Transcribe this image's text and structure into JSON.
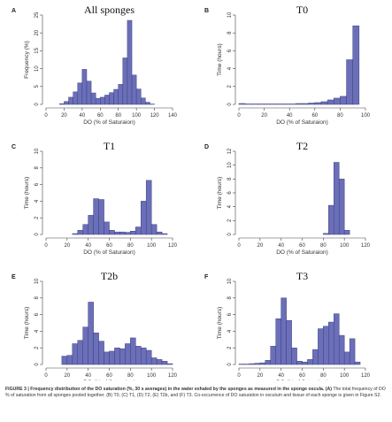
{
  "colors": {
    "bar_fill": "#6b6fb8",
    "bar_stroke": "#3c3f82",
    "axis": "#444444"
  },
  "caption": {
    "head": "FIGURE 3 | Frequency distribution of the DO saturation (%, 30 s averages) in the water exhaled by the sponges as measured in the sponge oscula. (A)",
    "body": "The total frequency of DO % of saturation from all sponges pooled together. (B) T0, (C) T1, (D) T2, (E) T2b, and (F) T3. Co-occurrence of DO saturation in osculum and tissue of each sponge is given in Figure S2."
  },
  "chart_data": [
    {
      "type": "bar",
      "letter": "A",
      "title": "All sponges",
      "xlabel": "DO (% of Saturaion)",
      "ylabel": "Frequency (%)",
      "xlim": [
        0,
        140
      ],
      "ylim": [
        0,
        25
      ],
      "xticks": [
        0,
        20,
        40,
        60,
        80,
        100,
        120,
        140
      ],
      "yticks": [
        0,
        5,
        10,
        15,
        20,
        25
      ],
      "bin_width": 5,
      "bin_starts": [
        15,
        20,
        25,
        30,
        35,
        40,
        45,
        50,
        55,
        60,
        65,
        70,
        75,
        80,
        85,
        90,
        95,
        100,
        105,
        110,
        115
      ],
      "values": [
        0.2,
        0.8,
        2.0,
        3.5,
        6.0,
        9.8,
        6.5,
        3.2,
        1.7,
        2.0,
        2.6,
        3.3,
        4.2,
        5.6,
        13.0,
        23.5,
        8.2,
        4.3,
        1.8,
        0.6,
        0.1
      ]
    },
    {
      "type": "bar",
      "letter": "B",
      "title": "T0",
      "xlabel": "DO (% of Saturaion)",
      "ylabel": "Time (hours)",
      "xlim": [
        0,
        100
      ],
      "ylim": [
        0,
        10
      ],
      "xticks": [
        0,
        20,
        40,
        60,
        80,
        100
      ],
      "yticks": [
        0,
        2,
        4,
        6,
        8,
        10
      ],
      "bin_width": 5,
      "bin_starts": [
        0,
        5,
        10,
        15,
        20,
        25,
        30,
        35,
        40,
        45,
        50,
        55,
        60,
        65,
        70,
        75,
        80,
        85,
        90
      ],
      "values": [
        0.1,
        0.05,
        0.05,
        0.05,
        0.05,
        0.05,
        0.05,
        0.05,
        0.05,
        0.1,
        0.1,
        0.15,
        0.2,
        0.3,
        0.5,
        0.7,
        0.9,
        5.0,
        8.8
      ]
    },
    {
      "type": "bar",
      "letter": "C",
      "title": "T1",
      "xlabel": "DO (% of Saturaion)",
      "ylabel": "Time (hours)",
      "xlim": [
        0,
        120
      ],
      "ylim": [
        0,
        10
      ],
      "xticks": [
        0,
        20,
        40,
        60,
        80,
        100,
        120
      ],
      "yticks": [
        0,
        2,
        4,
        6,
        8,
        10
      ],
      "bin_width": 5,
      "bin_starts": [
        25,
        30,
        35,
        40,
        45,
        50,
        55,
        60,
        65,
        70,
        75,
        80,
        85,
        90,
        95,
        100,
        105,
        110
      ],
      "values": [
        0.1,
        0.5,
        1.2,
        2.3,
        4.3,
        4.2,
        1.5,
        0.5,
        0.3,
        0.3,
        0.25,
        0.4,
        0.9,
        4.0,
        6.5,
        1.2,
        0.3,
        0.1
      ]
    },
    {
      "type": "bar",
      "letter": "D",
      "title": "T2",
      "xlabel": "DO (% of Saturaion)",
      "ylabel": "Time (hours)",
      "xlim": [
        0,
        120
      ],
      "ylim": [
        0,
        12
      ],
      "xticks": [
        0,
        20,
        40,
        60,
        80,
        100,
        120
      ],
      "yticks": [
        0,
        2,
        4,
        6,
        8,
        10,
        12
      ],
      "bin_width": 5,
      "bin_starts": [
        80,
        85,
        90,
        95,
        100
      ],
      "values": [
        0.15,
        4.2,
        10.4,
        8.0,
        0.6
      ]
    },
    {
      "type": "bar",
      "letter": "E",
      "title": "T2b",
      "xlabel": "DO (% of Saturaion)",
      "ylabel": "Time (hours)",
      "xlim": [
        0,
        120
      ],
      "ylim": [
        0,
        10
      ],
      "xticks": [
        0,
        20,
        40,
        60,
        80,
        100,
        120
      ],
      "yticks": [
        0,
        2,
        4,
        6,
        8,
        10
      ],
      "bin_width": 5,
      "bin_starts": [
        15,
        20,
        25,
        30,
        35,
        40,
        45,
        50,
        55,
        60,
        65,
        70,
        75,
        80,
        85,
        90,
        95,
        100,
        105,
        110,
        115
      ],
      "values": [
        1.0,
        1.1,
        2.5,
        2.9,
        4.5,
        7.5,
        3.8,
        2.8,
        1.5,
        1.6,
        2.0,
        1.9,
        2.5,
        3.2,
        2.2,
        2.0,
        1.7,
        0.8,
        0.6,
        0.4,
        0.1
      ]
    },
    {
      "type": "bar",
      "letter": "F",
      "title": "T3",
      "xlabel": "DO (% of Saturaion)",
      "ylabel": "Time (hours)",
      "xlim": [
        0,
        120
      ],
      "ylim": [
        0,
        10
      ],
      "xticks": [
        0,
        20,
        40,
        60,
        80,
        100,
        120
      ],
      "yticks": [
        0,
        2,
        4,
        6,
        8,
        10
      ],
      "bin_width": 5,
      "bin_starts": [
        0,
        5,
        10,
        15,
        20,
        25,
        30,
        35,
        40,
        45,
        50,
        55,
        60,
        65,
        70,
        75,
        80,
        85,
        90,
        95,
        100,
        105,
        110
      ],
      "values": [
        0.05,
        0.05,
        0.1,
        0.15,
        0.2,
        0.5,
        2.2,
        5.5,
        8.0,
        5.3,
        2.0,
        0.4,
        0.3,
        0.6,
        1.8,
        4.3,
        4.6,
        5.1,
        6.1,
        3.5,
        1.5,
        3.1,
        0.3
      ]
    }
  ]
}
